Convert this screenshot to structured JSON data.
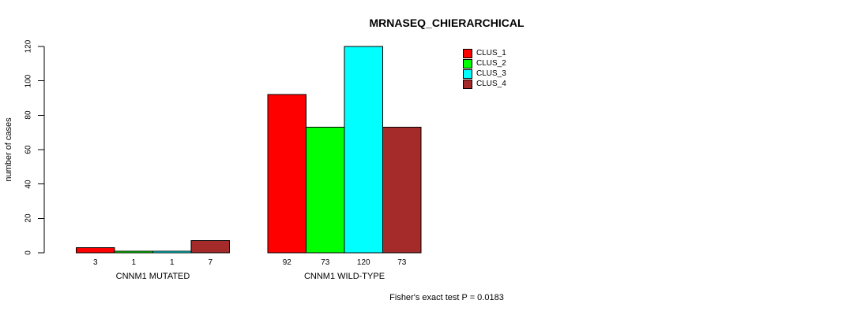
{
  "chart_data": {
    "type": "bar",
    "title": "MRNASEQ_CHIERARCHICAL",
    "ylabel": "number of cases",
    "xlabel": "",
    "categories": [
      "CNNM1 MUTATED",
      "CNNM1 WILD-TYPE"
    ],
    "series": [
      {
        "name": "CLUS_1",
        "color": "#FF0000",
        "values": [
          3,
          92
        ]
      },
      {
        "name": "CLUS_2",
        "color": "#00FF00",
        "values": [
          1,
          73
        ]
      },
      {
        "name": "CLUS_3",
        "color": "#00FFFF",
        "values": [
          1,
          120
        ]
      },
      {
        "name": "CLUS_4",
        "color": "#A52A2A",
        "values": [
          7,
          73
        ]
      }
    ],
    "bar_value_labels": [
      [
        "3",
        "1",
        "1",
        "7"
      ],
      [
        "92",
        "73",
        "120",
        "73"
      ]
    ],
    "ylim": [
      0,
      120
    ],
    "yticks": [
      0,
      20,
      40,
      60,
      80,
      100,
      120
    ],
    "grid": false,
    "legend_position": "top-right",
    "legend_entries": [
      "CLUS_1",
      "CLUS_2",
      "CLUS_3",
      "CLUS_4"
    ],
    "annotation": "Fisher's exact test P = 0.0183",
    "axis_color": "#000000",
    "bar_border_color": "#000000",
    "background_color": "#FFFFFF"
  }
}
